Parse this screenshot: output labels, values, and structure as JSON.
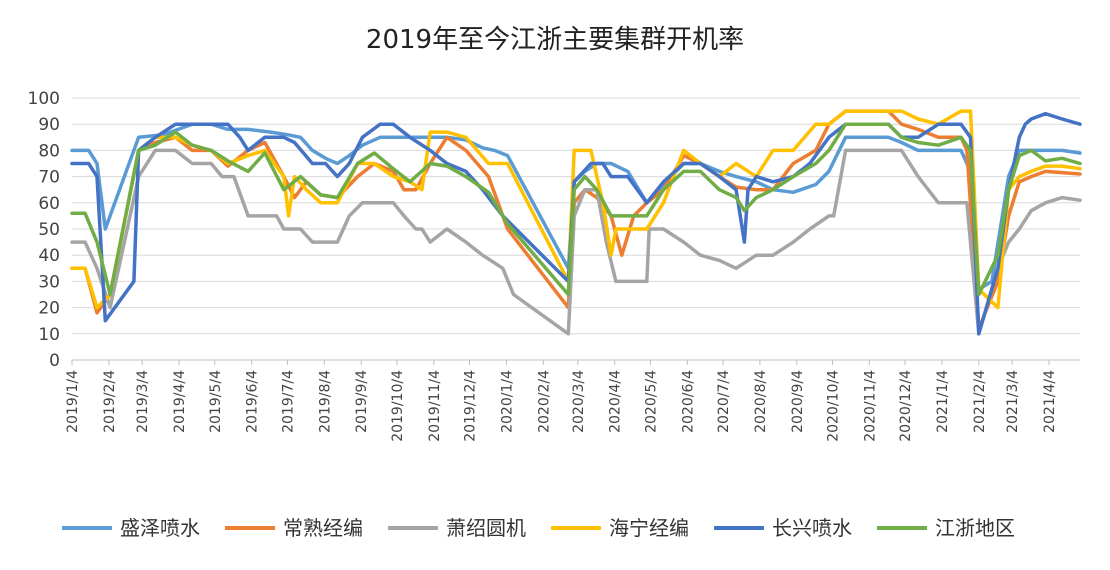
{
  "chart_data": {
    "type": "line",
    "title": "2019年至今江浙主要集群开机率",
    "xlabel": "",
    "ylabel": "",
    "ylim": [
      0,
      100
    ],
    "yticks": [
      "0",
      "10",
      "20",
      "30",
      "40",
      "50",
      "60",
      "70",
      "80",
      "90",
      "100"
    ],
    "xlim": [
      "2019-01-04",
      "2021-04-30"
    ],
    "xticks": [
      "2019/1/4",
      "2019/2/4",
      "2019/3/4",
      "2019/4/4",
      "2019/5/4",
      "2019/6/4",
      "2019/7/4",
      "2019/8/4",
      "2019/9/4",
      "2019/10/4",
      "2019/11/4",
      "2019/12/4",
      "2020/1/4",
      "2020/2/4",
      "2020/3/4",
      "2020/4/4",
      "2020/5/4",
      "2020/6/4",
      "2020/7/4",
      "2020/8/4",
      "2020/9/4",
      "2020/10/4",
      "2020/11/4",
      "2020/12/4",
      "2021/1/4",
      "2021/2/4",
      "2021/3/4",
      "2021/4/4"
    ],
    "grid": true,
    "legend_position": "bottom",
    "series": [
      {
        "name": "盛泽喷水",
        "color": "#5b9bd5",
        "x": [
          "2019-01-04",
          "2019-01-18",
          "2019-01-25",
          "2019-02-01",
          "2019-03-01",
          "2019-03-22",
          "2019-04-15",
          "2019-05-01",
          "2019-05-15",
          "2019-06-01",
          "2019-06-20",
          "2019-07-04",
          "2019-07-15",
          "2019-07-25",
          "2019-08-05",
          "2019-08-15",
          "2019-08-25",
          "2019-09-05",
          "2019-09-20",
          "2019-10-01",
          "2019-10-15",
          "2019-11-01",
          "2019-11-15",
          "2019-12-01",
          "2019-12-15",
          "2019-12-25",
          "2020-01-05",
          "2020-02-25",
          "2020-03-01",
          "2020-03-10",
          "2020-03-20",
          "2020-04-01",
          "2020-04-15",
          "2020-05-01",
          "2020-05-15",
          "2020-06-01",
          "2020-06-15",
          "2020-07-01",
          "2020-07-15",
          "2020-08-01",
          "2020-08-15",
          "2020-09-01",
          "2020-09-20",
          "2020-10-01",
          "2020-10-15",
          "2020-11-01",
          "2020-11-20",
          "2020-12-01",
          "2020-12-15",
          "2021-01-01",
          "2021-01-20",
          "2021-01-28",
          "2021-02-04",
          "2021-02-15",
          "2021-03-01",
          "2021-03-10",
          "2021-03-20",
          "2021-04-01",
          "2021-04-15",
          "2021-04-30"
        ],
        "y": [
          80,
          80,
          75,
          50,
          85,
          86,
          90,
          90,
          88,
          88,
          87,
          86,
          85,
          80,
          77,
          75,
          78,
          82,
          85,
          85,
          85,
          85,
          85,
          84,
          81,
          80,
          78,
          35,
          68,
          72,
          75,
          75,
          72,
          60,
          67,
          75,
          75,
          72,
          70,
          68,
          65,
          64,
          67,
          72,
          85,
          85,
          85,
          83,
          80,
          80,
          80,
          72,
          27,
          30,
          70,
          80,
          80,
          80,
          80,
          79
        ]
      },
      {
        "name": "常熟经编",
        "color": "#ed7d31",
        "x": [
          "2019-01-04",
          "2019-01-15",
          "2019-01-25",
          "2019-02-05",
          "2019-03-01",
          "2019-03-15",
          "2019-04-01",
          "2019-04-15",
          "2019-05-01",
          "2019-05-15",
          "2019-06-01",
          "2019-06-15",
          "2019-07-01",
          "2019-07-10",
          "2019-07-20",
          "2019-08-01",
          "2019-08-15",
          "2019-09-01",
          "2019-09-15",
          "2019-10-01",
          "2019-10-10",
          "2019-10-20",
          "2019-11-01",
          "2019-11-15",
          "2019-12-01",
          "2019-12-20",
          "2020-01-05",
          "2020-02-25",
          "2020-03-01",
          "2020-03-10",
          "2020-03-20",
          "2020-04-01",
          "2020-04-10",
          "2020-04-20",
          "2020-05-01",
          "2020-05-15",
          "2020-06-01",
          "2020-06-15",
          "2020-07-01",
          "2020-07-15",
          "2020-08-01",
          "2020-08-15",
          "2020-09-01",
          "2020-09-20",
          "2020-10-01",
          "2020-10-15",
          "2020-11-01",
          "2020-11-20",
          "2020-12-01",
          "2020-12-15",
          "2021-01-01",
          "2021-01-20",
          "2021-01-25",
          "2021-02-04",
          "2021-02-20",
          "2021-03-01",
          "2021-03-10",
          "2021-03-20",
          "2021-04-01",
          "2021-04-30"
        ],
        "y": [
          35,
          35,
          18,
          25,
          80,
          83,
          85,
          80,
          80,
          74,
          80,
          83,
          70,
          62,
          68,
          63,
          62,
          70,
          75,
          72,
          65,
          65,
          75,
          85,
          80,
          70,
          50,
          20,
          60,
          65,
          62,
          55,
          40,
          55,
          60,
          65,
          78,
          75,
          70,
          66,
          65,
          65,
          75,
          80,
          90,
          95,
          95,
          95,
          90,
          88,
          85,
          85,
          80,
          12,
          30,
          55,
          68,
          70,
          72,
          71
        ]
      },
      {
        "name": "萧绍圆机",
        "color": "#a5a5a5",
        "x": [
          "2019-01-04",
          "2019-01-15",
          "2019-01-25",
          "2019-02-05",
          "2019-03-01",
          "2019-03-15",
          "2019-04-01",
          "2019-04-15",
          "2019-05-01",
          "2019-05-10",
          "2019-05-20",
          "2019-06-01",
          "2019-06-25",
          "2019-07-01",
          "2019-07-15",
          "2019-07-25",
          "2019-08-05",
          "2019-08-15",
          "2019-08-25",
          "2019-09-05",
          "2019-09-20",
          "2019-10-01",
          "2019-10-10",
          "2019-10-20",
          "2019-10-25",
          "2019-11-01",
          "2019-11-15",
          "2019-12-01",
          "2019-12-15",
          "2020-01-01",
          "2020-01-10",
          "2020-02-25",
          "2020-03-01",
          "2020-03-10",
          "2020-03-20",
          "2020-03-28",
          "2020-04-05",
          "2020-04-15",
          "2020-05-01",
          "2020-05-03",
          "2020-05-15",
          "2020-06-01",
          "2020-06-15",
          "2020-07-01",
          "2020-07-15",
          "2020-08-01",
          "2020-08-15",
          "2020-09-01",
          "2020-09-15",
          "2020-10-01",
          "2020-10-05",
          "2020-10-15",
          "2020-11-01",
          "2020-11-20",
          "2020-12-01",
          "2020-12-15",
          "2021-01-01",
          "2021-01-20",
          "2021-01-25",
          "2021-02-04",
          "2021-02-20",
          "2021-03-01",
          "2021-03-10",
          "2021-03-20",
          "2021-04-01",
          "2021-04-15",
          "2021-04-30"
        ],
        "y": [
          45,
          45,
          35,
          20,
          70,
          80,
          80,
          75,
          75,
          70,
          70,
          55,
          55,
          50,
          50,
          45,
          45,
          45,
          55,
          60,
          60,
          60,
          55,
          50,
          50,
          45,
          50,
          45,
          40,
          35,
          25,
          10,
          55,
          65,
          65,
          45,
          30,
          30,
          30,
          50,
          50,
          45,
          40,
          38,
          35,
          40,
          40,
          45,
          50,
          55,
          55,
          80,
          80,
          80,
          80,
          70,
          60,
          60,
          60,
          10,
          35,
          45,
          50,
          57,
          60,
          62,
          61
        ]
      },
      {
        "name": "海宁经编",
        "color": "#ffc000",
        "x": [
          "2019-01-04",
          "2019-01-15",
          "2019-01-25",
          "2019-02-05",
          "2019-03-01",
          "2019-03-15",
          "2019-04-01",
          "2019-04-15",
          "2019-05-01",
          "2019-05-15",
          "2019-06-01",
          "2019-06-15",
          "2019-07-01",
          "2019-07-05",
          "2019-07-10",
          "2019-07-20",
          "2019-08-01",
          "2019-08-15",
          "2019-09-01",
          "2019-09-15",
          "2019-10-01",
          "2019-10-15",
          "2019-10-25",
          "2019-11-01",
          "2019-11-15",
          "2019-12-01",
          "2019-12-20",
          "2020-01-05",
          "2020-02-25",
          "2020-03-01",
          "2020-03-15",
          "2020-03-25",
          "2020-04-01",
          "2020-04-05",
          "2020-04-15",
          "2020-05-01",
          "2020-05-15",
          "2020-06-01",
          "2020-06-15",
          "2020-07-01",
          "2020-07-15",
          "2020-08-01",
          "2020-08-15",
          "2020-09-01",
          "2020-09-20",
          "2020-10-01",
          "2020-10-15",
          "2020-11-01",
          "2020-11-20",
          "2020-12-01",
          "2020-12-15",
          "2021-01-01",
          "2021-01-20",
          "2021-01-28",
          "2021-02-04",
          "2021-02-20",
          "2021-03-01",
          "2021-03-10",
          "2021-03-20",
          "2021-04-01",
          "2021-04-15",
          "2021-04-30"
        ],
        "y": [
          35,
          35,
          20,
          25,
          80,
          85,
          85,
          82,
          80,
          75,
          78,
          80,
          70,
          55,
          70,
          65,
          60,
          60,
          75,
          75,
          70,
          68,
          65,
          87,
          87,
          85,
          75,
          75,
          30,
          80,
          80,
          60,
          40,
          50,
          50,
          50,
          60,
          80,
          75,
          70,
          75,
          70,
          80,
          80,
          90,
          90,
          95,
          95,
          95,
          95,
          92,
          90,
          95,
          95,
          27,
          20,
          65,
          70,
          72,
          74,
          74,
          73
        ]
      },
      {
        "name": "长兴喷水",
        "color": "#4472c4",
        "x": [
          "2019-01-04",
          "2019-01-18",
          "2019-01-25",
          "2019-02-01",
          "2019-02-25",
          "2019-03-01",
          "2019-03-15",
          "2019-04-01",
          "2019-04-15",
          "2019-05-01",
          "2019-05-15",
          "2019-05-25",
          "2019-06-01",
          "2019-06-15",
          "2019-07-01",
          "2019-07-10",
          "2019-07-25",
          "2019-08-05",
          "2019-08-15",
          "2019-08-25",
          "2019-09-05",
          "2019-09-20",
          "2019-10-01",
          "2019-10-15",
          "2019-11-01",
          "2019-11-15",
          "2019-12-01",
          "2019-12-15",
          "2020-01-01",
          "2020-02-25",
          "2020-03-01",
          "2020-03-15",
          "2020-03-25",
          "2020-04-01",
          "2020-04-15",
          "2020-05-01",
          "2020-05-15",
          "2020-06-01",
          "2020-06-15",
          "2020-07-01",
          "2020-07-15",
          "2020-07-22",
          "2020-07-25",
          "2020-08-01",
          "2020-08-15",
          "2020-09-01",
          "2020-09-15",
          "2020-10-01",
          "2020-10-15",
          "2020-11-01",
          "2020-11-20",
          "2020-12-01",
          "2020-12-15",
          "2021-01-01",
          "2021-01-20",
          "2021-01-28",
          "2021-02-04",
          "2021-02-20",
          "2021-03-01",
          "2021-03-10",
          "2021-03-15",
          "2021-03-20",
          "2021-04-01",
          "2021-04-15",
          "2021-04-30"
        ],
        "y": [
          75,
          75,
          70,
          15,
          30,
          80,
          85,
          90,
          90,
          90,
          90,
          85,
          80,
          85,
          85,
          83,
          75,
          75,
          70,
          75,
          85,
          90,
          90,
          85,
          80,
          75,
          72,
          65,
          55,
          30,
          68,
          75,
          75,
          70,
          70,
          60,
          68,
          75,
          75,
          70,
          65,
          45,
          65,
          70,
          68,
          70,
          75,
          85,
          90,
          90,
          90,
          85,
          85,
          90,
          90,
          85,
          10,
          35,
          65,
          85,
          90,
          92,
          94,
          92,
          90
        ]
      },
      {
        "name": "江浙地区",
        "color": "#70ad47",
        "x": [
          "2019-01-04",
          "2019-01-15",
          "2019-01-25",
          "2019-02-05",
          "2019-03-01",
          "2019-03-15",
          "2019-04-01",
          "2019-04-15",
          "2019-05-01",
          "2019-05-15",
          "2019-06-01",
          "2019-06-15",
          "2019-07-01",
          "2019-07-15",
          "2019-08-01",
          "2019-08-15",
          "2019-09-01",
          "2019-09-15",
          "2019-10-01",
          "2019-10-15",
          "2019-11-01",
          "2019-11-15",
          "2019-12-01",
          "2019-12-20",
          "2020-01-05",
          "2020-02-25",
          "2020-03-01",
          "2020-03-10",
          "2020-03-20",
          "2020-04-01",
          "2020-04-15",
          "2020-05-01",
          "2020-05-15",
          "2020-06-01",
          "2020-06-15",
          "2020-07-01",
          "2020-07-15",
          "2020-07-22",
          "2020-08-01",
          "2020-08-15",
          "2020-09-01",
          "2020-09-20",
          "2020-10-01",
          "2020-10-15",
          "2020-11-01",
          "2020-11-20",
          "2020-12-01",
          "2020-12-15",
          "2021-01-01",
          "2021-01-20",
          "2021-01-28",
          "2021-02-04",
          "2021-02-20",
          "2021-03-01",
          "2021-03-10",
          "2021-03-20",
          "2021-04-01",
          "2021-04-15",
          "2021-04-30"
        ],
        "y": [
          56,
          56,
          45,
          25,
          80,
          82,
          87,
          82,
          80,
          76,
          72,
          79,
          65,
          70,
          63,
          62,
          75,
          79,
          73,
          68,
          75,
          74,
          70,
          64,
          52,
          25,
          65,
          70,
          65,
          55,
          55,
          55,
          65,
          72,
          72,
          65,
          62,
          57,
          62,
          65,
          70,
          75,
          80,
          90,
          90,
          90,
          85,
          83,
          82,
          85,
          80,
          25,
          40,
          65,
          78,
          80,
          76,
          77,
          75
        ]
      }
    ]
  }
}
